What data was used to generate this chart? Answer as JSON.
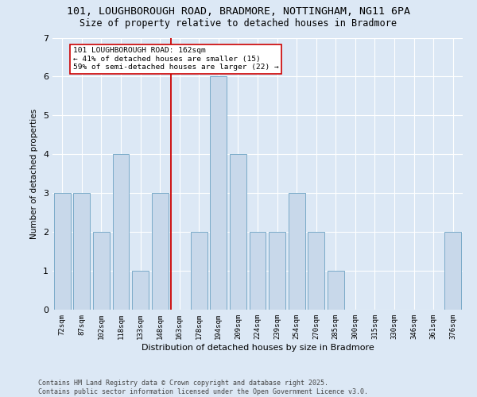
{
  "title_line1": "101, LOUGHBOROUGH ROAD, BRADMORE, NOTTINGHAM, NG11 6PA",
  "title_line2": "Size of property relative to detached houses in Bradmore",
  "xlabel": "Distribution of detached houses by size in Bradmore",
  "ylabel": "Number of detached properties",
  "categories": [
    "72sqm",
    "87sqm",
    "102sqm",
    "118sqm",
    "133sqm",
    "148sqm",
    "163sqm",
    "178sqm",
    "194sqm",
    "209sqm",
    "224sqm",
    "239sqm",
    "254sqm",
    "270sqm",
    "285sqm",
    "300sqm",
    "315sqm",
    "330sqm",
    "346sqm",
    "361sqm",
    "376sqm"
  ],
  "values": [
    3,
    3,
    2,
    4,
    1,
    3,
    0,
    2,
    6,
    4,
    2,
    2,
    3,
    2,
    1,
    0,
    0,
    0,
    0,
    0,
    2
  ],
  "bar_color": "#c8d8ea",
  "bar_edge_color": "#7aaac8",
  "reference_line_index": 6,
  "reference_line_color": "#cc0000",
  "annotation_text": "101 LOUGHBOROUGH ROAD: 162sqm\n← 41% of detached houses are smaller (15)\n59% of semi-detached houses are larger (22) →",
  "annotation_box_color": "#ffffff",
  "annotation_box_edge_color": "#cc0000",
  "ylim": [
    0,
    7
  ],
  "yticks": [
    0,
    1,
    2,
    3,
    4,
    5,
    6,
    7
  ],
  "background_color": "#dce8f5",
  "plot_bg_color": "#dce8f5",
  "footer_text": "Contains HM Land Registry data © Crown copyright and database right 2025.\nContains public sector information licensed under the Open Government Licence v3.0.",
  "title_fontsize": 9.5,
  "subtitle_fontsize": 8.5,
  "annotation_fontsize": 6.8,
  "footer_fontsize": 6.0,
  "ylabel_fontsize": 7.5,
  "xlabel_fontsize": 8.0,
  "ytick_fontsize": 8.0,
  "xtick_fontsize": 6.5
}
